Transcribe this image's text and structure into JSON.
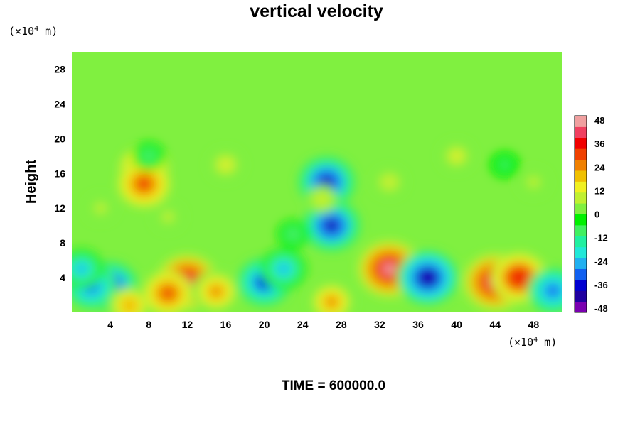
{
  "chart_data": {
    "type": "heatmap",
    "title": "vertical velocity",
    "ylabel": "Height",
    "y_unit_prefix": "(×10",
    "y_unit_exp": "4",
    "y_unit_suffix": " m)",
    "x_unit_prefix": "(×10",
    "x_unit_exp": "4",
    "x_unit_suffix": " m)",
    "time_label": "TIME = 600000.0",
    "xlim": [
      0,
      51
    ],
    "ylim": [
      0,
      30
    ],
    "x_ticks": [
      4,
      8,
      12,
      16,
      20,
      24,
      28,
      32,
      36,
      40,
      44,
      48
    ],
    "y_ticks": [
      4,
      8,
      12,
      16,
      20,
      24,
      28
    ],
    "colorbar": {
      "min": -48,
      "max": 48,
      "ticks": [
        48,
        36,
        24,
        12,
        0,
        -12,
        -24,
        -36,
        -48
      ],
      "colors": [
        "#7a00b0",
        "#2000a0",
        "#0000d0",
        "#1060f0",
        "#20b0f0",
        "#20e8d8",
        "#20f0a0",
        "#40f060",
        "#00f000",
        "#80f040",
        "#c0f030",
        "#f0f020",
        "#f0c000",
        "#f08000",
        "#f04000",
        "#f00000",
        "#f04060",
        "#f0a0a0"
      ]
    },
    "background_value": 0,
    "features": [
      {
        "x": 4,
        "y": 3,
        "value": -38
      },
      {
        "x": 2,
        "y": 3,
        "value": -32
      },
      {
        "x": 1,
        "y": 5,
        "value": -24
      },
      {
        "x": 6,
        "y": 0.8,
        "value": 22
      },
      {
        "x": 12,
        "y": 3.5,
        "value": 44
      },
      {
        "x": 10,
        "y": 2.2,
        "value": 30
      },
      {
        "x": 15,
        "y": 2.4,
        "value": 28
      },
      {
        "x": 20,
        "y": 3.5,
        "value": -36
      },
      {
        "x": 22,
        "y": 5,
        "value": -26
      },
      {
        "x": 27,
        "y": 1.2,
        "value": 26
      },
      {
        "x": 26.5,
        "y": 15,
        "value": -40
      },
      {
        "x": 27,
        "y": 10,
        "value": -40
      },
      {
        "x": 33,
        "y": 5,
        "value": 46
      },
      {
        "x": 37,
        "y": 4,
        "value": -44
      },
      {
        "x": 44,
        "y": 3.5,
        "value": 46
      },
      {
        "x": 46.5,
        "y": 4,
        "value": 38
      },
      {
        "x": 50,
        "y": 2.5,
        "value": -32
      },
      {
        "x": 7.5,
        "y": 16.5,
        "value": 30
      },
      {
        "x": 7.5,
        "y": 14.8,
        "value": 34
      },
      {
        "x": 16,
        "y": 17,
        "value": 14
      },
      {
        "x": 40,
        "y": 18,
        "value": 12
      },
      {
        "x": 33,
        "y": 15,
        "value": 10
      },
      {
        "x": 26,
        "y": 13,
        "value": 10
      },
      {
        "x": 3,
        "y": 12,
        "value": 8
      },
      {
        "x": 10,
        "y": 11,
        "value": 8
      },
      {
        "x": 48,
        "y": 15,
        "value": 8
      },
      {
        "x": 23,
        "y": 9,
        "value": -10
      },
      {
        "x": 8,
        "y": 18,
        "value": -10
      },
      {
        "x": 45,
        "y": 17,
        "value": -8
      }
    ]
  }
}
